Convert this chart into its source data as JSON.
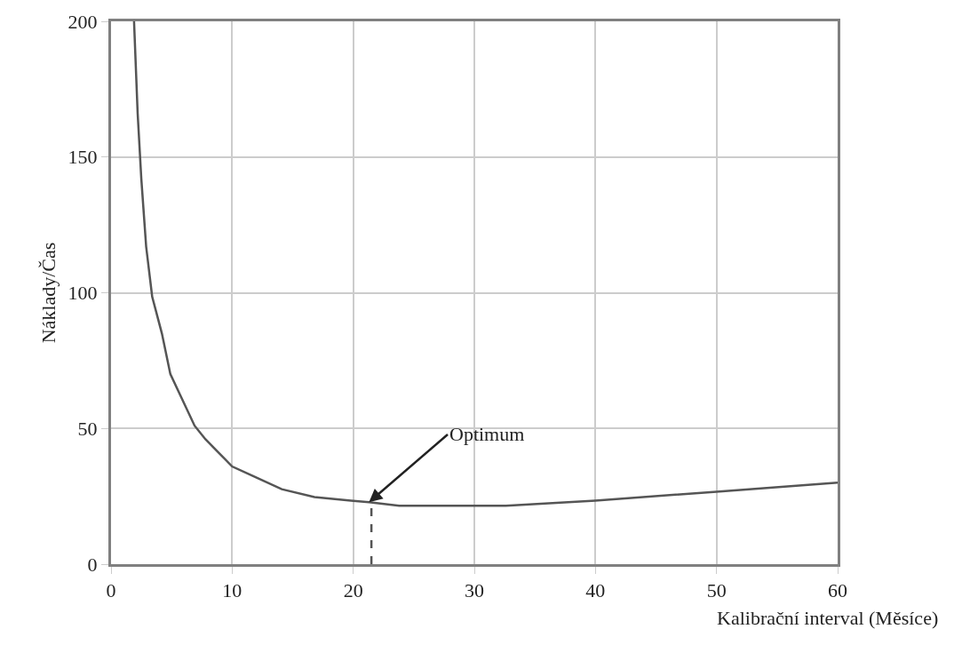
{
  "chart_data": {
    "type": "line",
    "xlabel": "Kalibrační interval (Měsíce)",
    "ylabel": "Náklady/Čas",
    "xlim": [
      0,
      60
    ],
    "xticks": [
      0,
      10,
      20,
      30,
      40,
      50,
      60
    ],
    "ylim": [
      0,
      200
    ],
    "yticks": [
      0,
      50,
      100,
      150,
      200
    ],
    "grid": true,
    "marker": "none",
    "series": [
      {
        "color": "#555555",
        "line_style": "solid",
        "x": [
          1.9,
          2.2,
          2.5,
          2.9,
          3.4,
          4.2,
          4.9,
          6.9,
          7.8,
          10,
          11.7,
          14.1,
          16.8,
          19.8,
          21.3,
          23.8,
          32.6,
          40,
          50,
          60
        ],
        "values": [
          200,
          166,
          142,
          117,
          98.5,
          85,
          70,
          51,
          46,
          36,
          32.5,
          27.6,
          24.7,
          23.4,
          22.8,
          21.5,
          21.5,
          23.4,
          26.7,
          30
        ]
      },
      {
        "color": "#555555",
        "line_style": "dashed",
        "x": [
          21.5,
          21.5
        ],
        "values": [
          0,
          23
        ]
      }
    ],
    "annotations": [
      {
        "text": "Optimum",
        "x": 21.3,
        "y": 22.8
      }
    ]
  }
}
